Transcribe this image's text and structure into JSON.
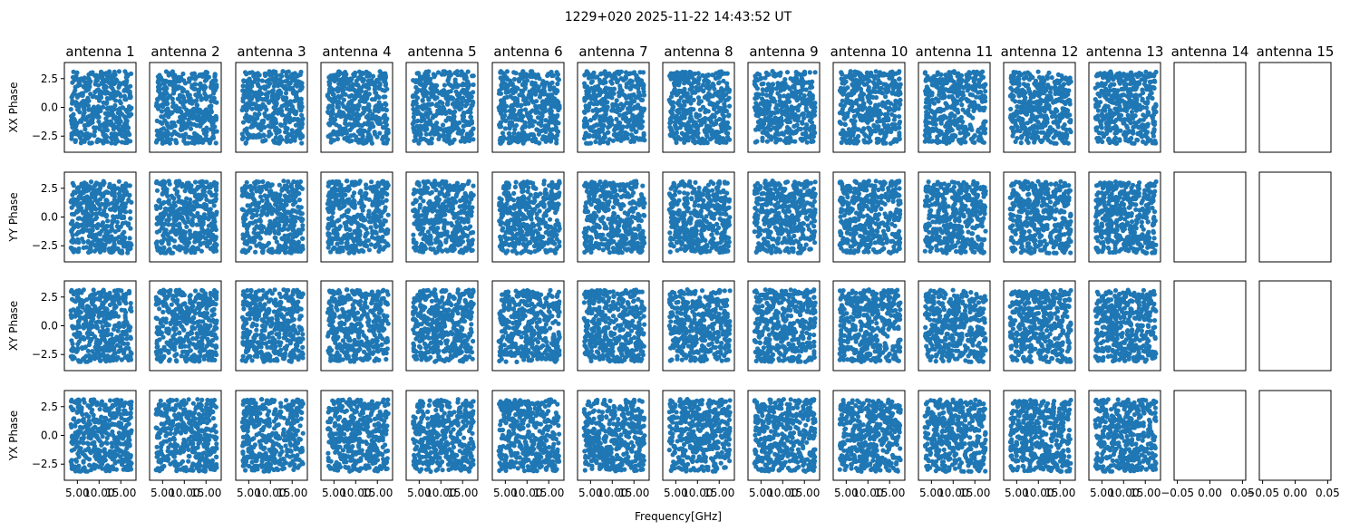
{
  "chart_data": {
    "type": "scatter",
    "title": "1229+020 2025-11-22 14:43:52 UT",
    "xlabel": "Frequency[GHz]",
    "columns": [
      "antenna 1",
      "antenna 2",
      "antenna 3",
      "antenna 4",
      "antenna 5",
      "antenna 6",
      "antenna 7",
      "antenna 8",
      "antenna 9",
      "antenna 10",
      "antenna 11",
      "antenna 12",
      "antenna 13",
      "antenna 14",
      "antenna 15"
    ],
    "rows": [
      "XX Phase",
      "YY Phase",
      "XY Phase",
      "YX Phase"
    ],
    "ylim": [
      -3.9,
      3.9
    ],
    "yticks": [
      -2.5,
      0.0,
      2.5
    ],
    "ytick_labels": [
      "−2.5",
      "0.0",
      "2.5"
    ],
    "xlim": [
      2.0,
      18.5
    ],
    "xticks": [
      5.0,
      10.0,
      15.0
    ],
    "xtick_labels": [
      "5.00",
      "10.00",
      "15.00"
    ],
    "empty_xlim": [
      -0.055,
      0.055
    ],
    "empty_xticks": [
      -0.05,
      0.0,
      0.05
    ],
    "empty_xtick_labels": [
      "−0.05",
      "0.00",
      "0.05"
    ],
    "data_antennas": 13,
    "freq_range": [
      3.5,
      17.5
    ],
    "phase_range": [
      -3.14,
      3.14
    ],
    "points_per_panel": 420,
    "marker_color": "#1f77b4",
    "grid": false
  }
}
